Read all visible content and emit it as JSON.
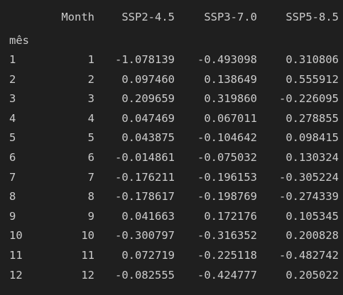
{
  "table": {
    "columns": [
      "Month",
      "SSP2-4.5",
      "SSP3-7.0",
      "SSP5-8.5"
    ],
    "index_name": "mês",
    "rows": [
      {
        "index": "1",
        "month": "1",
        "ssp245": "-1.078139",
        "ssp370": "-0.493098",
        "ssp585": "0.310806"
      },
      {
        "index": "2",
        "month": "2",
        "ssp245": "0.097460",
        "ssp370": "0.138649",
        "ssp585": "0.555912"
      },
      {
        "index": "3",
        "month": "3",
        "ssp245": "0.209659",
        "ssp370": "0.319860",
        "ssp585": "-0.226095"
      },
      {
        "index": "4",
        "month": "4",
        "ssp245": "0.047469",
        "ssp370": "0.067011",
        "ssp585": "0.278855"
      },
      {
        "index": "5",
        "month": "5",
        "ssp245": "0.043875",
        "ssp370": "-0.104642",
        "ssp585": "0.098415"
      },
      {
        "index": "6",
        "month": "6",
        "ssp245": "-0.014861",
        "ssp370": "-0.075032",
        "ssp585": "0.130324"
      },
      {
        "index": "7",
        "month": "7",
        "ssp245": "-0.176211",
        "ssp370": "-0.196153",
        "ssp585": "-0.305224"
      },
      {
        "index": "8",
        "month": "8",
        "ssp245": "-0.178617",
        "ssp370": "-0.198769",
        "ssp585": "-0.274339"
      },
      {
        "index": "9",
        "month": "9",
        "ssp245": "0.041663",
        "ssp370": "0.172176",
        "ssp585": "0.105345"
      },
      {
        "index": "10",
        "month": "10",
        "ssp245": "-0.300797",
        "ssp370": "-0.316352",
        "ssp585": "0.200828"
      },
      {
        "index": "11",
        "month": "11",
        "ssp245": "0.072719",
        "ssp370": "-0.225118",
        "ssp585": "-0.482742"
      },
      {
        "index": "12",
        "month": "12",
        "ssp245": "-0.082555",
        "ssp370": "-0.424777",
        "ssp585": "0.205022"
      }
    ]
  },
  "colors": {
    "background": "#1f1f1f",
    "text": "#cccccc"
  }
}
